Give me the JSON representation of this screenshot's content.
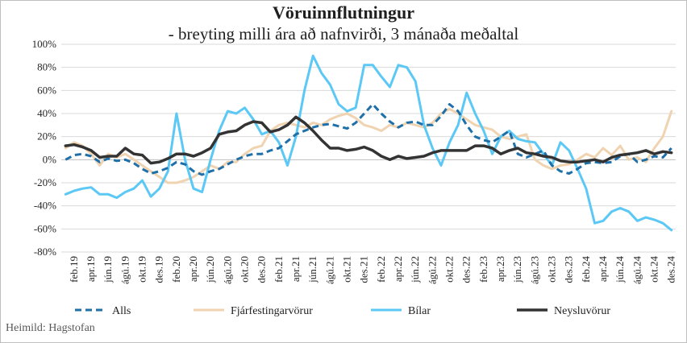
{
  "chart_data": {
    "type": "line",
    "title": "Vöruinnflutningur",
    "subtitle": "- breyting milli ára að nafnvirði, 3 mánaða meðaltal",
    "source": "Heimild: Hagstofan",
    "ylim": [
      -80,
      100
    ],
    "yticks": [
      "100%",
      "80%",
      "60%",
      "40%",
      "20%",
      "0%",
      "-20%",
      "-40%",
      "-60%",
      "-80%"
    ],
    "ytick_values": [
      100,
      80,
      60,
      40,
      20,
      0,
      -20,
      -40,
      -60,
      -80
    ],
    "grid": true,
    "legend_position": "bottom",
    "x": [
      "jan.19",
      "feb.19",
      "mar.19",
      "apr.19",
      "maí.19",
      "jún.19",
      "júl.19",
      "ágú.19",
      "sep.19",
      "okt.19",
      "nóv.19",
      "des.19",
      "jan.20",
      "feb.20",
      "mar.20",
      "apr.20",
      "maí.20",
      "jún.20",
      "júl.20",
      "ágú.20",
      "sep.20",
      "okt.20",
      "nóv.20",
      "des.20",
      "jan.21",
      "feb.21",
      "mar.21",
      "apr.21",
      "maí.21",
      "jún.21",
      "júl.21",
      "ágú.21",
      "sep.21",
      "okt.21",
      "nóv.21",
      "des.21",
      "jan.22",
      "feb.22",
      "mar.22",
      "apr.22",
      "maí.22",
      "jún.22",
      "júl.22",
      "ágú.22",
      "sep.22",
      "okt.22",
      "nóv.22",
      "des.22",
      "jan.23",
      "feb.23",
      "mar.23",
      "apr.23",
      "maí.23",
      "jún.23",
      "júl.23",
      "ágú.23",
      "sep.23",
      "okt.23",
      "nóv.23",
      "des.23",
      "jan.24",
      "feb.24",
      "mar.24",
      "apr.24",
      "maí.24",
      "jún.24",
      "júl.24",
      "ágú.24",
      "sep.24",
      "okt.24",
      "nóv.24",
      "des.24"
    ],
    "xtick_labels": [
      "feb.19",
      "apr.19",
      "jún.19",
      "ágú.19",
      "okt.19",
      "des.19",
      "feb.20",
      "apr.20",
      "jún.20",
      "ágú.20",
      "okt.20",
      "des.20",
      "feb.21",
      "apr.21",
      "jún.21",
      "ágú.21",
      "okt.21",
      "des.21",
      "feb.22",
      "apr.22",
      "jún.22",
      "ágú.22",
      "okt.22",
      "des.22",
      "feb.23",
      "apr.23",
      "jún.23",
      "ágú.23",
      "okt.23",
      "des.23",
      "feb.24",
      "apr.24",
      "jún.24",
      "ágú.24",
      "okt.24",
      "des.24"
    ],
    "series": [
      {
        "name": "Alls",
        "color": "#1f6fa8",
        "dash": "8,5",
        "width": 3,
        "values": [
          0,
          4,
          5,
          3,
          -2,
          1,
          -1,
          0,
          -3,
          -8,
          -12,
          -10,
          -7,
          -2,
          -4,
          -10,
          -13,
          -10,
          -8,
          -4,
          0,
          3,
          5,
          5,
          8,
          10,
          16,
          22,
          25,
          28,
          30,
          31,
          29,
          27,
          32,
          40,
          48,
          40,
          33,
          28,
          32,
          33,
          30,
          30,
          38,
          48,
          42,
          30,
          20,
          17,
          15,
          20,
          25,
          5,
          2,
          5,
          8,
          -5,
          -10,
          -12,
          -8,
          -3,
          -2,
          -3,
          -2,
          3,
          5,
          -2,
          0,
          3,
          2,
          10
        ]
      },
      {
        "name": "Fjárfestingarvörur",
        "color": "#f0d3b0",
        "dash": "",
        "width": 3,
        "values": [
          10,
          15,
          12,
          5,
          -5,
          5,
          2,
          5,
          0,
          -5,
          -10,
          -15,
          -20,
          -20,
          -18,
          -15,
          -10,
          -5,
          -8,
          -2,
          -2,
          5,
          10,
          12,
          25,
          30,
          32,
          30,
          28,
          32,
          30,
          35,
          38,
          40,
          36,
          30,
          28,
          25,
          30,
          28,
          32,
          30,
          28,
          32,
          40,
          44,
          40,
          35,
          30,
          28,
          26,
          20,
          18,
          20,
          22,
          0,
          -5,
          -8,
          -5,
          -4,
          0,
          5,
          2,
          10,
          4,
          12,
          0,
          2,
          -2,
          10,
          20,
          42
        ]
      },
      {
        "name": "Bílar",
        "color": "#5bc8f5",
        "dash": "",
        "width": 3,
        "values": [
          -30,
          -27,
          -25,
          -24,
          -30,
          -30,
          -33,
          -28,
          -25,
          -18,
          -32,
          -25,
          -10,
          40,
          0,
          -25,
          -28,
          0,
          25,
          42,
          40,
          45,
          35,
          22,
          25,
          15,
          -5,
          20,
          60,
          90,
          75,
          65,
          48,
          42,
          45,
          82,
          82,
          72,
          63,
          82,
          80,
          68,
          30,
          10,
          -5,
          15,
          30,
          58,
          40,
          25,
          5,
          20,
          25,
          18,
          16,
          15,
          5,
          -5,
          15,
          8,
          -8,
          -25,
          -55,
          -53,
          -45,
          -42,
          -45,
          -53,
          -50,
          -52,
          -55,
          -61
        ]
      },
      {
        "name": "Neysluvörur",
        "color": "#333333",
        "dash": "",
        "width": 3.5,
        "values": [
          12,
          13,
          11,
          8,
          2,
          3,
          3,
          10,
          5,
          4,
          -3,
          -2,
          1,
          5,
          5,
          3,
          6,
          10,
          22,
          24,
          25,
          30,
          33,
          32,
          24,
          26,
          30,
          37,
          32,
          25,
          17,
          10,
          10,
          8,
          9,
          11,
          8,
          3,
          0,
          3,
          1,
          2,
          3,
          6,
          8,
          8,
          8,
          8,
          12,
          12,
          10,
          5,
          8,
          10,
          6,
          5,
          3,
          2,
          -1,
          -2,
          -2,
          -1,
          0,
          -2,
          2,
          4,
          5,
          6,
          8,
          5,
          7,
          6
        ]
      }
    ]
  }
}
